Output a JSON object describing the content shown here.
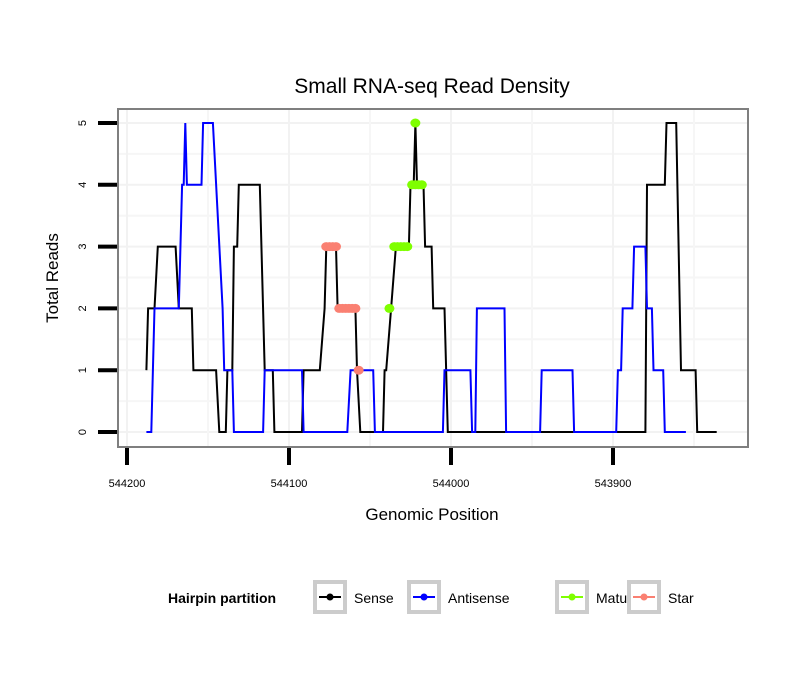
{
  "chart_data": {
    "type": "line",
    "subtype": "step",
    "title": "Small RNA-seq Read Density",
    "xlabel": "Genomic Position",
    "ylabel": "Total Reads",
    "xlim": [
      544212,
      543822
    ],
    "x_reversed": true,
    "ylim": [
      -0.2,
      5.25
    ],
    "x_ticks": [
      544200,
      544100,
      544000,
      543900
    ],
    "x_tick_labels": [
      "544200",
      "544100",
      "544000",
      "543900"
    ],
    "y_ticks": [
      0,
      1,
      2,
      3,
      4,
      5
    ],
    "y_tick_labels": [
      "0",
      "1",
      "2",
      "3",
      "4",
      "5"
    ],
    "grid": true,
    "legend": {
      "title": "Hairpin partition",
      "position": "bottom",
      "entries": [
        {
          "name": "Sense",
          "color": "#000000"
        },
        {
          "name": "Antisense",
          "color": "#0000ff"
        },
        {
          "name": "Mature",
          "color": "#7fff00"
        },
        {
          "name": "Star",
          "color": "#fa8072"
        }
      ]
    },
    "series": [
      {
        "name": "Sense",
        "color": "#000000",
        "style": "line",
        "points": [
          [
            544188,
            1
          ],
          [
            544187,
            2
          ],
          [
            544183,
            2
          ],
          [
            544181,
            3
          ],
          [
            544170,
            3
          ],
          [
            544168,
            2
          ],
          [
            544160,
            2
          ],
          [
            544159,
            1
          ],
          [
            544145,
            1
          ],
          [
            544143,
            0
          ],
          [
            544139,
            0
          ],
          [
            544138,
            1
          ],
          [
            544135,
            1
          ],
          [
            544134,
            3
          ],
          [
            544132,
            3
          ],
          [
            544131,
            4
          ],
          [
            544118,
            4
          ],
          [
            544115,
            1
          ],
          [
            544110,
            1
          ],
          [
            544109,
            0
          ],
          [
            544092,
            0
          ],
          [
            544091,
            1
          ],
          [
            544081,
            1
          ],
          [
            544078,
            2
          ],
          [
            544077,
            3
          ],
          [
            544071,
            3
          ],
          [
            544070,
            2
          ],
          [
            544059,
            2
          ],
          [
            544058,
            1
          ],
          [
            544056,
            0
          ],
          [
            544042,
            0
          ],
          [
            544041,
            1
          ],
          [
            544040,
            1
          ],
          [
            544037,
            2
          ],
          [
            544034,
            3
          ],
          [
            544026,
            3
          ],
          [
            544025,
            4
          ],
          [
            544023,
            4
          ],
          [
            544022,
            5
          ],
          [
            544021,
            4
          ],
          [
            544017,
            4
          ],
          [
            544016,
            3
          ],
          [
            544012,
            3
          ],
          [
            544011,
            2
          ],
          [
            544004,
            2
          ],
          [
            544002,
            0
          ],
          [
            543880,
            0
          ],
          [
            543879,
            4
          ],
          [
            543868,
            4
          ],
          [
            543867,
            5
          ],
          [
            543861,
            5
          ],
          [
            543858,
            1
          ],
          [
            543849,
            1
          ],
          [
            543848,
            0
          ],
          [
            543836,
            0
          ]
        ]
      },
      {
        "name": "Antisense",
        "color": "#0000ff",
        "style": "line",
        "points": [
          [
            544188,
            0
          ],
          [
            544185,
            0
          ],
          [
            544184,
            1
          ],
          [
            544183,
            2
          ],
          [
            544168,
            2
          ],
          [
            544166,
            4
          ],
          [
            544165,
            4
          ],
          [
            544164,
            5
          ],
          [
            544163,
            4
          ],
          [
            544154,
            4
          ],
          [
            544153,
            5
          ],
          [
            544147,
            5
          ],
          [
            544141,
            2
          ],
          [
            544140,
            1
          ],
          [
            544135,
            1
          ],
          [
            544134,
            0
          ],
          [
            544116,
            0
          ],
          [
            544115,
            1
          ],
          [
            544092,
            1
          ],
          [
            544091,
            0
          ],
          [
            544064,
            0
          ],
          [
            544062,
            1
          ],
          [
            544048,
            1
          ],
          [
            544047,
            0
          ],
          [
            544005,
            0
          ],
          [
            544004,
            1
          ],
          [
            543988,
            1
          ],
          [
            543987,
            0
          ],
          [
            543985,
            0
          ],
          [
            543984,
            2
          ],
          [
            543967,
            2
          ],
          [
            543966,
            0
          ],
          [
            543945,
            0
          ],
          [
            543944,
            1
          ],
          [
            543925,
            1
          ],
          [
            543924,
            0
          ],
          [
            543898,
            0
          ],
          [
            543897,
            1
          ],
          [
            543895,
            1
          ],
          [
            543894,
            2
          ],
          [
            543888,
            2
          ],
          [
            543887,
            3
          ],
          [
            543880,
            3
          ],
          [
            543879,
            2
          ],
          [
            543876,
            2
          ],
          [
            543875,
            1
          ],
          [
            543869,
            1
          ],
          [
            543868,
            0
          ],
          [
            543855,
            0
          ]
        ]
      },
      {
        "name": "Mature",
        "color": "#7fff00",
        "style": "points",
        "points": [
          [
            544038,
            2
          ],
          [
            544035,
            3
          ],
          [
            544033,
            3
          ],
          [
            544031,
            3
          ],
          [
            544029,
            3
          ],
          [
            544027,
            3
          ],
          [
            544024,
            4
          ],
          [
            544022,
            4
          ],
          [
            544020,
            4
          ],
          [
            544018,
            4
          ],
          [
            544022,
            5
          ]
        ]
      },
      {
        "name": "Star",
        "color": "#fa8072",
        "style": "points",
        "points": [
          [
            544077,
            3
          ],
          [
            544075,
            3
          ],
          [
            544073,
            3
          ],
          [
            544071,
            3
          ],
          [
            544069,
            2
          ],
          [
            544067,
            2
          ],
          [
            544065,
            2
          ],
          [
            544063,
            2
          ],
          [
            544061,
            2
          ],
          [
            544059,
            2
          ],
          [
            544057,
            1
          ]
        ]
      }
    ]
  }
}
